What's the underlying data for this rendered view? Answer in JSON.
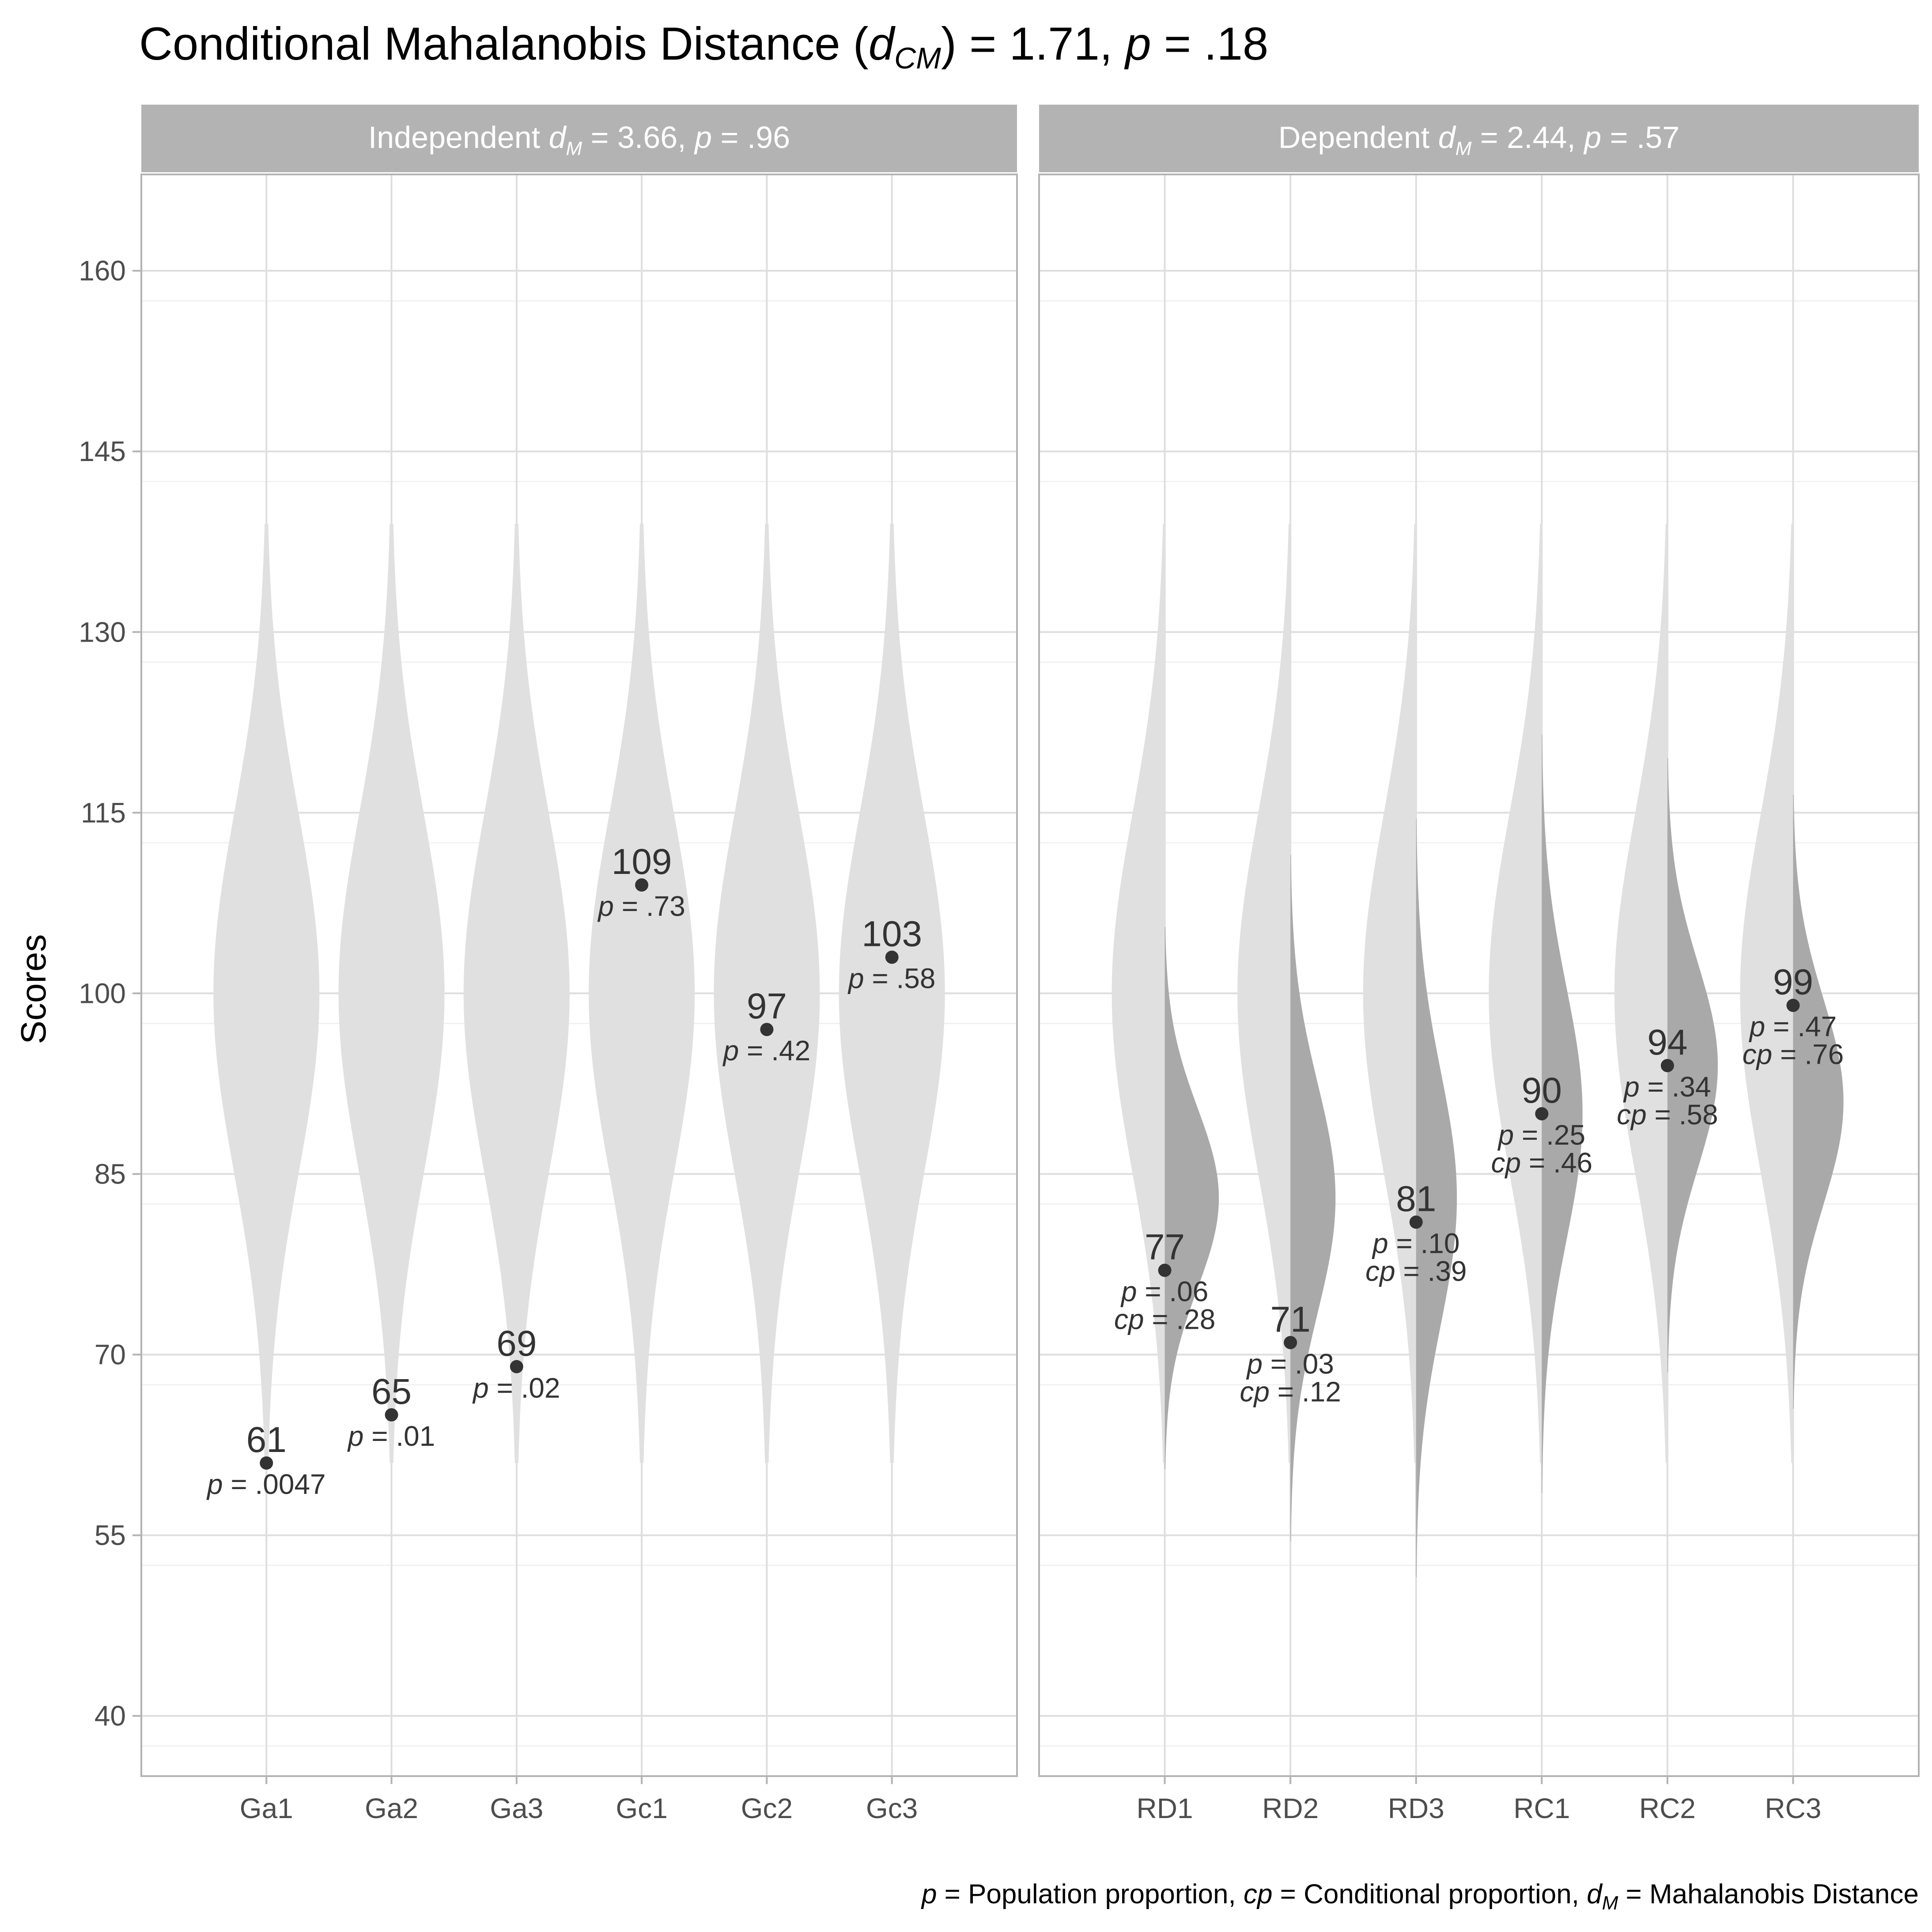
{
  "chart_data": {
    "type": "violin",
    "title": {
      "prefix": "Conditional Mahalanobis Distance (",
      "symbol": "d",
      "subscript": "CM",
      "value_text": ") = 1.71, ",
      "p_symbol": "p",
      "p_text": " = .18"
    },
    "ylabel": "Scores",
    "ylim": [
      35,
      168
    ],
    "y_ticks": [
      40,
      55,
      70,
      85,
      100,
      115,
      130,
      145,
      160
    ],
    "grid": true,
    "caption": {
      "p_symbol": "p",
      "p_text": " = Population proportion, ",
      "cp_symbol": "cp",
      "cp_text": " = Conditional proportion, ",
      "d_symbol": "d",
      "d_subscript": "M",
      "d_text": " = Mahalanobis Distance"
    },
    "distribution": {
      "mean": 100,
      "sd": 15
    },
    "panels": [
      {
        "strip": {
          "label": "Independent ",
          "symbol": "d",
          "subscript": "M",
          "value_text": " = 3.66, ",
          "p_symbol": "p",
          "p_text": " = .96"
        },
        "categories": [
          "Ga1",
          "Ga2",
          "Ga3",
          "Gc1",
          "Gc2",
          "Gc3"
        ],
        "scores": [
          61,
          65,
          69,
          109,
          97,
          103
        ],
        "p_labels": [
          ".0047",
          ".01",
          ".02",
          ".73",
          ".42",
          ".58"
        ]
      },
      {
        "strip": {
          "label": "Dependent ",
          "symbol": "d",
          "subscript": "M",
          "value_text": " = 2.44, ",
          "p_symbol": "p",
          "p_text": " = .57"
        },
        "categories": [
          "RD1",
          "RD2",
          "RD3",
          "RC1",
          "RC2",
          "RC3"
        ],
        "scores": [
          77,
          71,
          81,
          90,
          94,
          99
        ],
        "p_labels": [
          ".06",
          ".03",
          ".10",
          ".25",
          ".34",
          ".47"
        ],
        "cp_labels": [
          ".28",
          ".12",
          ".39",
          ".46",
          ".58",
          ".76"
        ],
        "conditional_mean": [
          83,
          83,
          83,
          90,
          94,
          91
        ],
        "conditional_sd": [
          7.5,
          9.5,
          10.5,
          10.5,
          8.5,
          8.5
        ]
      }
    ],
    "colors": {
      "violin": "#e0e0e0",
      "conditional": "#a9a9a9",
      "point": "#333333",
      "strip": "#b3b3b3",
      "panel_border": "#b3b3b3",
      "grid_major": "#dedede",
      "grid_minor": "#efefef"
    }
  }
}
